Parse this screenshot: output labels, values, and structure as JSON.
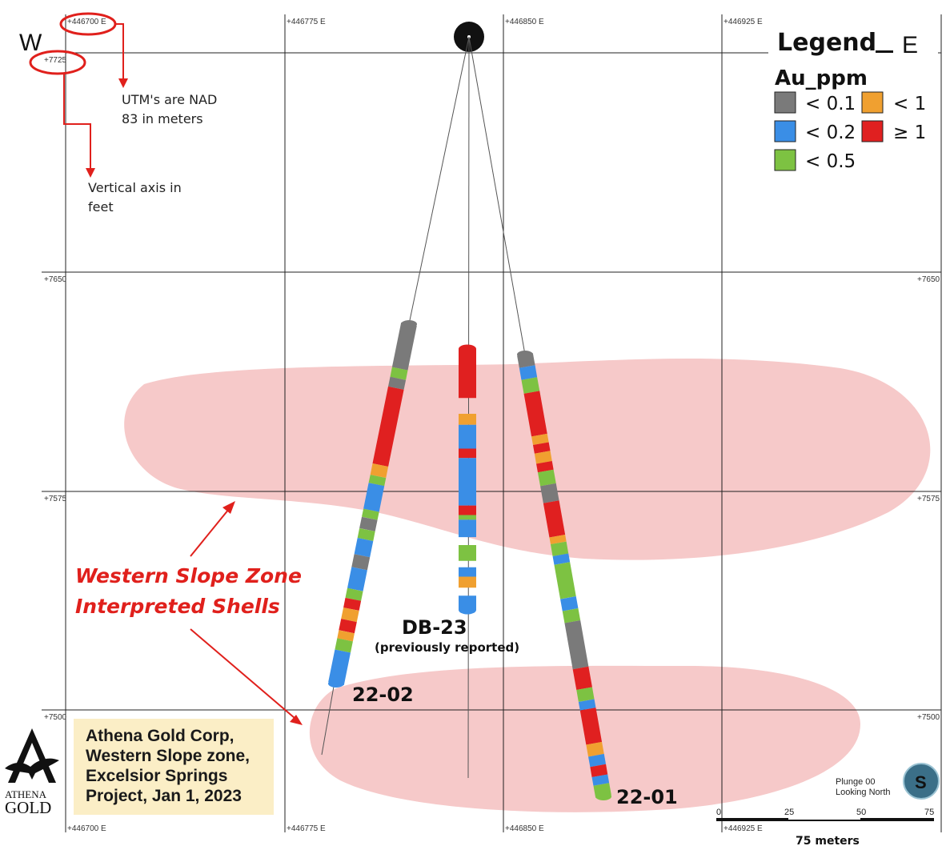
{
  "grid": {
    "easting_labels": [
      "+446700 E",
      "+446775 E",
      "+446850 E",
      "+446925 E"
    ],
    "elevation_labels": [
      "+7725",
      "+7650",
      "+7575",
      "+7500"
    ]
  },
  "compass": {
    "west": "W",
    "east": "E"
  },
  "annotations": {
    "utm_note": [
      "UTM's are NAD",
      "83 in meters"
    ],
    "vertical_note": [
      "Vertical axis in",
      "feet"
    ],
    "zone_note": [
      "Western Slope Zone",
      "Interpreted Shells"
    ]
  },
  "legend": {
    "title": "Legend",
    "subtitle": "Au_ppm",
    "items": [
      {
        "label": "< 0.1",
        "color": "#7a7a7a"
      },
      {
        "label": "< 1",
        "color": "#f0a030"
      },
      {
        "label": "< 0.2",
        "color": "#3a8ee6"
      },
      {
        "label": "≥ 1",
        "color": "#e02020"
      },
      {
        "label": "< 0.5",
        "color": "#7dc242"
      }
    ]
  },
  "drill_holes": [
    {
      "name": "22-02",
      "sub": ""
    },
    {
      "name": "DB-23",
      "sub": "(previously reported)"
    },
    {
      "name": "22-01",
      "sub": ""
    }
  ],
  "title_box": {
    "lines": [
      "Athena Gold Corp,",
      "Western Slope zone,",
      "Excelsior Springs",
      "Project, Jan 1, 2023"
    ]
  },
  "logo": {
    "line1": "ATHENA",
    "line2": "GOLD"
  },
  "orientation": {
    "plunge": "Plunge 00",
    "looking": "Looking North",
    "symbol": "S"
  },
  "scale_bar": {
    "ticks": [
      "0",
      "25",
      "50",
      "75"
    ],
    "caption": "75 meters"
  },
  "colors": {
    "shell": "#f6c9c9",
    "annotation_red": "#e0201c",
    "title_box_bg": "#fbeec6"
  }
}
